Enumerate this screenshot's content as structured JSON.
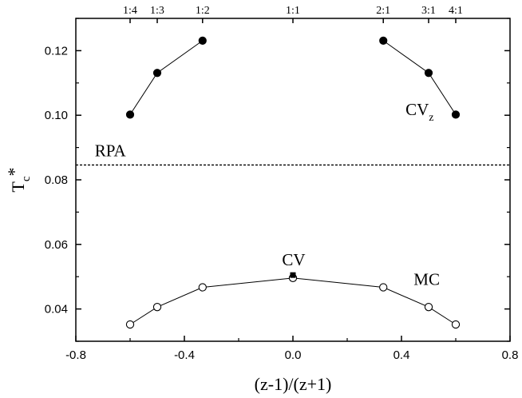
{
  "chart_data": {
    "type": "line",
    "xlabel": "(z-1)/(z+1)",
    "ylabel": "T",
    "ylabel_sub": "c",
    "ylabel_sup": "*",
    "xlim": [
      -0.8,
      0.8
    ],
    "ylim": [
      0.03,
      0.13
    ],
    "x_ticks": [
      -0.8,
      -0.4,
      0.0,
      0.4,
      0.8
    ],
    "x_tick_labels": [
      "-0.8",
      "-0.4",
      "0.0",
      "0.4",
      "0.8"
    ],
    "y_ticks": [
      0.04,
      0.06,
      0.08,
      0.1,
      0.12
    ],
    "y_tick_labels": [
      "0.04",
      "0.06",
      "0.08",
      "0.10",
      "0.12"
    ],
    "top_tick_labels": [
      {
        "x": -0.6,
        "label": "1:4"
      },
      {
        "x": -0.5,
        "label": "1:3"
      },
      {
        "x": -0.333,
        "label": "1:2"
      },
      {
        "x": 0.0,
        "label": "1:1"
      },
      {
        "x": 0.333,
        "label": "2:1"
      },
      {
        "x": 0.5,
        "label": "3:1"
      },
      {
        "x": 0.6,
        "label": "4:1"
      }
    ],
    "series": [
      {
        "name": "CVz",
        "marker": "filled-circle",
        "segments": [
          {
            "x": [
              -0.6,
              -0.5,
              -0.333
            ],
            "y": [
              0.1002,
              0.1131,
              0.1231
            ]
          },
          {
            "x": [
              0.333,
              0.5,
              0.6
            ],
            "y": [
              0.1231,
              0.1131,
              0.1002
            ]
          }
        ]
      },
      {
        "name": "MC",
        "marker": "open-circle",
        "segments": [
          {
            "x": [
              -0.6,
              -0.5,
              -0.333,
              0.0,
              0.333,
              0.5,
              0.6
            ],
            "y": [
              0.0352,
              0.0406,
              0.0467,
              0.0496,
              0.0467,
              0.0406,
              0.0352
            ]
          }
        ]
      },
      {
        "name": "CV",
        "marker": "filled-square",
        "segments": [
          {
            "x": [
              0.0
            ],
            "y": [
              0.0505
            ]
          }
        ]
      }
    ],
    "reference_lines": [
      {
        "name": "RPA",
        "y": 0.0846,
        "style": "dotted"
      }
    ],
    "annotations": [
      {
        "text": "RPA",
        "x": -0.73,
        "y": 0.0873
      },
      {
        "text": "CV",
        "x": -0.04,
        "y": 0.0535
      },
      {
        "text": "MC",
        "x": 0.445,
        "y": 0.0475
      },
      {
        "text": "CV",
        "sub": "z",
        "x": 0.415,
        "y": 0.1
      }
    ],
    "grid": false,
    "legend": "none"
  }
}
